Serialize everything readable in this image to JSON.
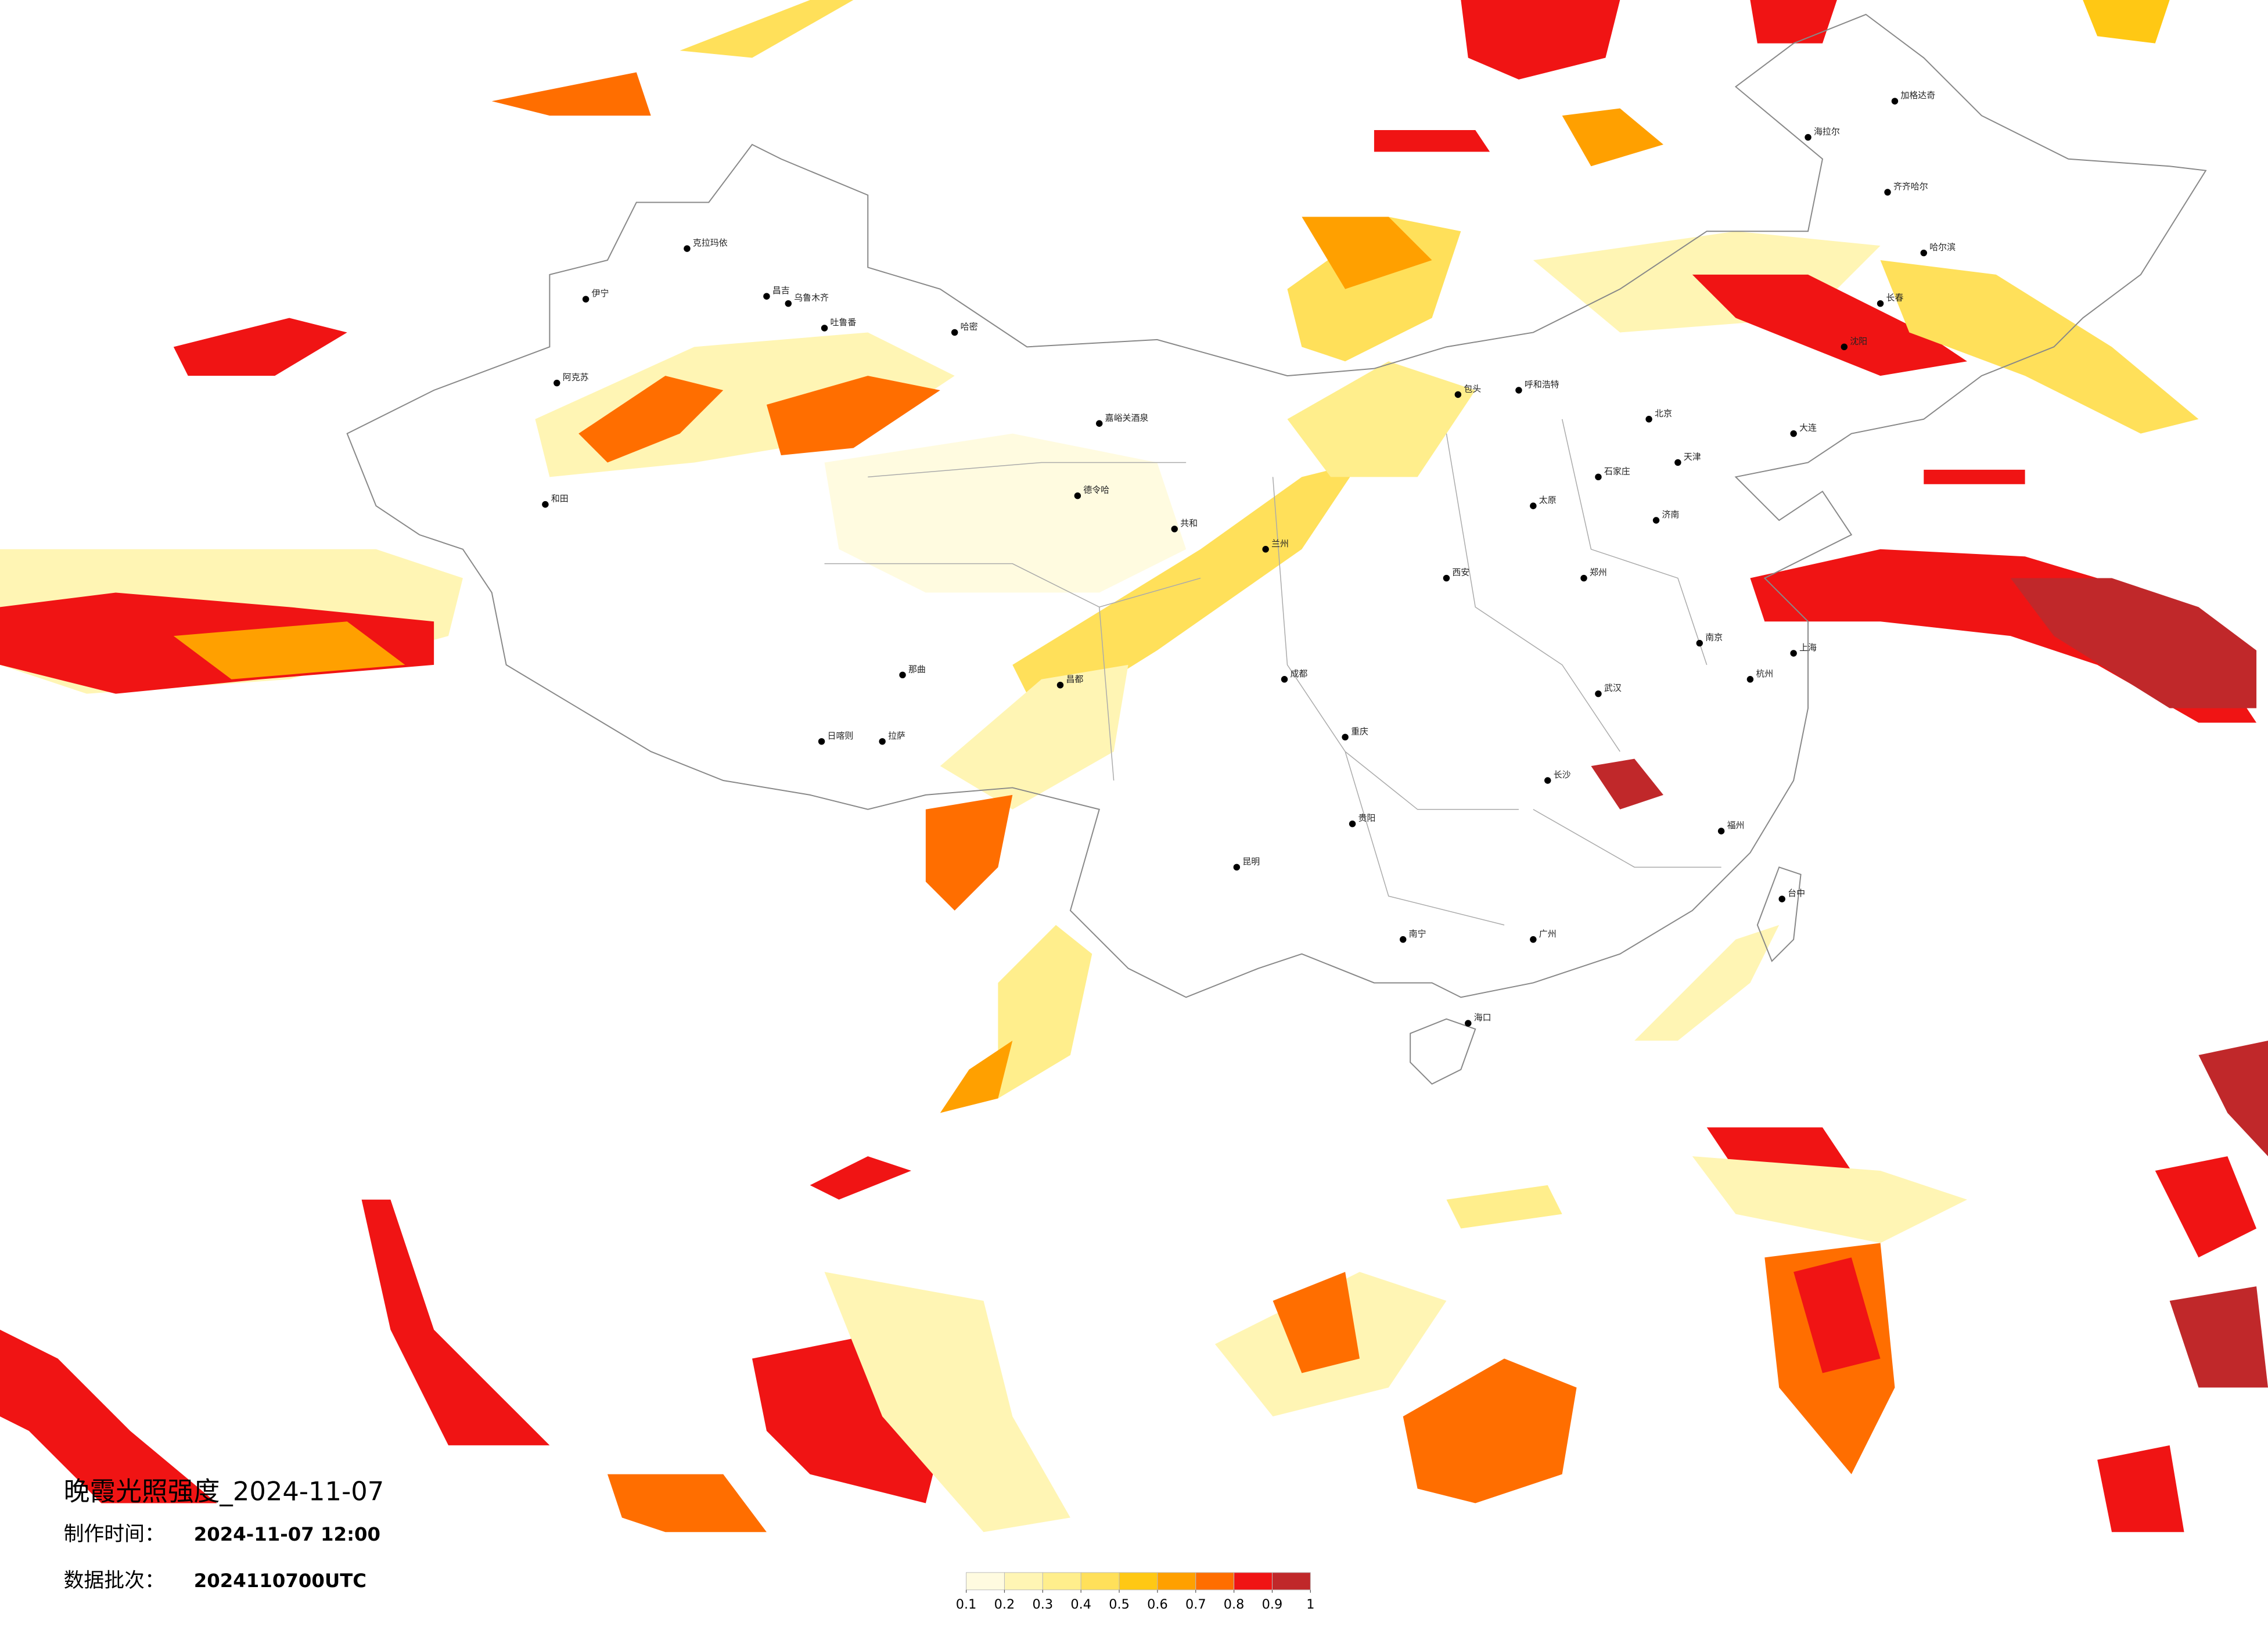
{
  "header": {
    "title": "晚霞光照强度_2024-11-07",
    "made_label": "制作时间：",
    "made_time": "2024-11-07 12:00",
    "batch_label": "数据批次：",
    "batch": "2024110700UTC"
  },
  "legend": {
    "colors": [
      "#fffbe0",
      "#fff5b4",
      "#ffee8c",
      "#ffe05a",
      "#ffc814",
      "#ffa000",
      "#ff6e00",
      "#f01414",
      "#c0282a"
    ],
    "ticks": [
      0.1,
      0.2,
      0.3,
      0.4,
      0.5,
      0.6,
      0.7,
      0.8,
      0.9,
      1
    ]
  },
  "cities": [
    "克拉玛依",
    "昌吉",
    "乌鲁木齐",
    "吐鲁番",
    "哈密",
    "伊宁",
    "阿克苏",
    "和田",
    "嘉峪关酒泉",
    "德令哈",
    "共和",
    "拉萨",
    "日喀则",
    "那曲",
    "昌都",
    "呼和浩特",
    "包头",
    "北京",
    "天津",
    "石家庄",
    "太原",
    "郑州",
    "西安",
    "兰州",
    "成都",
    "重庆",
    "贵阳",
    "昆明",
    "南宁",
    "广州",
    "长沙",
    "武汉",
    "南京",
    "上海",
    "杭州",
    "福州",
    "台中",
    "海口",
    "哈尔滨",
    "长春",
    "沈阳",
    "大连",
    "济南",
    "齐齐哈尔",
    "海拉尔",
    "加格达奇"
  ]
}
